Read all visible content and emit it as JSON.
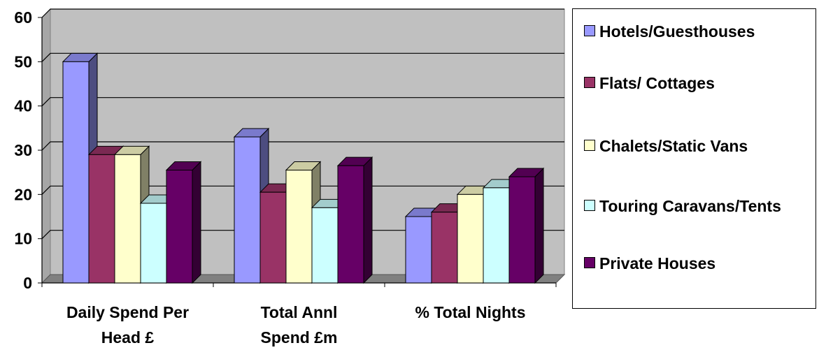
{
  "chart_data": {
    "type": "bar",
    "categories": [
      "Daily Spend Per Head £",
      "Total Annl Spend £m",
      "% Total Nights"
    ],
    "series": [
      {
        "name": "Hotels/Guesthouses",
        "values": [
          50,
          33,
          15
        ],
        "color": "#9999ff",
        "side_color": "#4d4d80",
        "top_color": "#7a7acc"
      },
      {
        "name": "Flats/ Cottages",
        "values": [
          29,
          20.5,
          16
        ],
        "color": "#993366",
        "side_color": "#4d1a33",
        "top_color": "#7a2952"
      },
      {
        "name": "Chalets/Static Vans",
        "values": [
          29,
          25.5,
          20
        ],
        "color": "#ffffcc",
        "side_color": "#808066",
        "top_color": "#cccca3"
      },
      {
        "name": "Touring Caravans/Tents",
        "values": [
          18,
          17,
          21.5
        ],
        "color": "#ccffff",
        "side_color": "#668080",
        "top_color": "#a3cccc"
      },
      {
        "name": "Private Houses",
        "values": [
          25.5,
          26.5,
          24
        ],
        "color": "#660066",
        "side_color": "#330033",
        "top_color": "#520052"
      }
    ],
    "ylim": [
      0,
      60
    ],
    "yticks": [
      0,
      10,
      20,
      30,
      40,
      50,
      60
    ],
    "grid": true,
    "plot_background": "#c0c0c0",
    "legend_position": "right"
  }
}
